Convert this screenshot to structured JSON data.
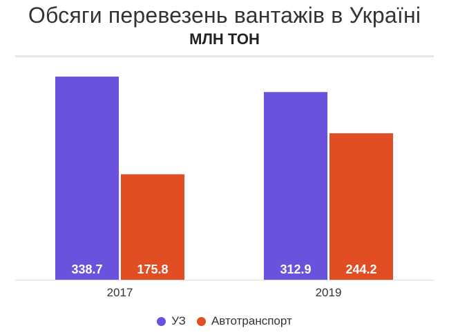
{
  "chart_data": {
    "type": "bar",
    "title": "Обсяги перевезень вантажів в Україні",
    "subtitle": "МЛН ТОН",
    "categories": [
      "2017",
      "2019"
    ],
    "series": [
      {
        "name": "УЗ",
        "values": [
          338.7,
          312.9
        ],
        "color": "#6b52dc"
      },
      {
        "name": "Автотранспорт",
        "values": [
          175.8,
          244.2
        ],
        "color": "#e14e24"
      }
    ],
    "ylim": [
      0,
      380
    ],
    "grid": false,
    "legend_position": "bottom"
  }
}
